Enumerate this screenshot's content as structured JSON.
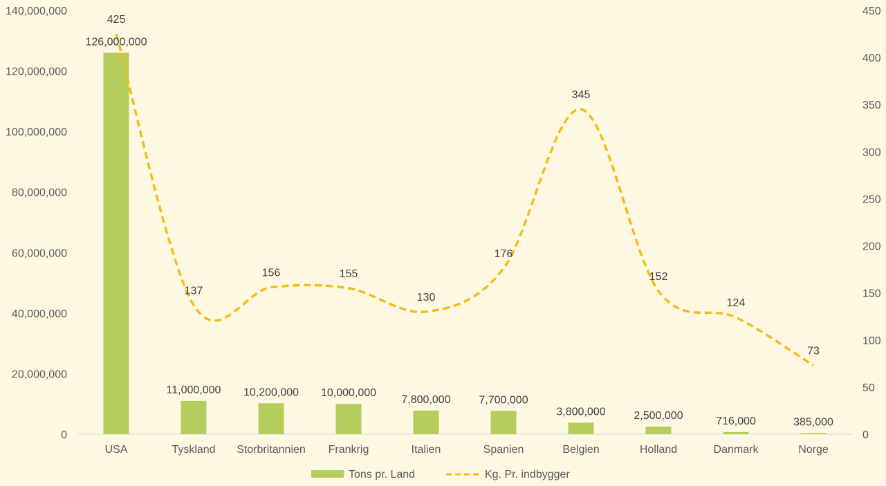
{
  "colors": {
    "background": "#fef8e3",
    "bar": "#b5cd5d",
    "line": "#f5bc18",
    "axis": "#d9d9d9",
    "text": "#595959"
  },
  "chart_data": {
    "type": "bar",
    "title": "",
    "xlabel": "",
    "ylabel": "",
    "categories": [
      "USA",
      "Tyskland",
      "Storbritannien",
      "Frankrig",
      "Italien",
      "Spanien",
      "Belgien",
      "Holland",
      "Danmark",
      "Norge"
    ],
    "series": [
      {
        "name": "Tons pr. Land",
        "type": "bar",
        "axis": "left",
        "values": [
          126000000,
          11000000,
          10200000,
          10000000,
          7800000,
          7700000,
          3800000,
          2500000,
          716000,
          385000
        ],
        "labels": [
          "126,000,000",
          "11,000,000",
          "10,200,000",
          "10,000,000",
          "7,800,000",
          "7,700,000",
          "3,800,000",
          "2,500,000",
          "716,000",
          "385,000"
        ]
      },
      {
        "name": "Kg. Pr. indbygger",
        "type": "line",
        "style": "dashed-smooth",
        "axis": "right",
        "values": [
          425,
          137,
          156,
          155,
          130,
          176,
          345,
          152,
          124,
          73
        ],
        "labels": [
          "425",
          "137",
          "156",
          "155",
          "130",
          "176",
          "345",
          "152",
          "124",
          "73"
        ]
      }
    ],
    "ylim": [
      0,
      140000000
    ],
    "y2lim": [
      0,
      450
    ],
    "left_ticks": [
      "0",
      "20,000,000",
      "40,000,000",
      "60,000,000",
      "80,000,000",
      "100,000,000",
      "120,000,000",
      "140,000,000"
    ],
    "right_ticks": [
      "0",
      "50",
      "100",
      "150",
      "200",
      "250",
      "300",
      "350",
      "400",
      "450"
    ],
    "legend_position": "bottom",
    "grid": false
  }
}
